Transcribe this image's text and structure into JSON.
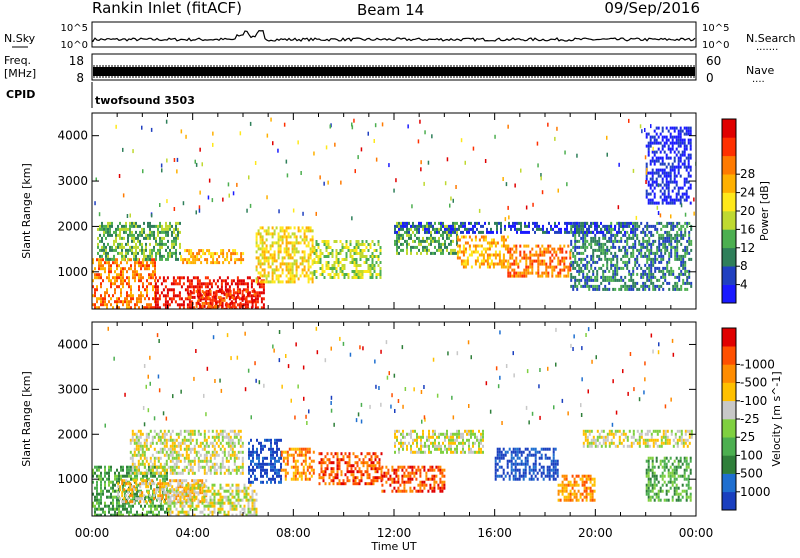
{
  "header": {
    "title": "Rankin Inlet (fitACF)",
    "beam": "Beam 14",
    "date": "09/Sep/2016"
  },
  "panels": {
    "nsky": {
      "left_label": "N.Sky",
      "right_label": "N.Search",
      "left_ticks": [
        "10^5",
        "10^0"
      ],
      "right_ticks": [
        "10^5",
        "10^0"
      ],
      "right_marker": "......."
    },
    "freq": {
      "left_label": "Freq.",
      "left_unit": "[MHz]",
      "left_ticks": [
        "18",
        "8"
      ],
      "right_label": "Nave",
      "right_ticks": [
        "60",
        "0"
      ],
      "right_marker": "...."
    },
    "cpid": {
      "label": "CPID",
      "value": "twofsound 3503"
    }
  },
  "chart_data": [
    {
      "type": "heatmap",
      "ylabel": "Slant Range [km]",
      "y_ticks": [
        1000,
        2000,
        3000,
        4000
      ],
      "ylim": [
        180,
        4500
      ],
      "xlim": [
        0,
        24
      ],
      "colorbar": {
        "label": "Power [dB]",
        "ticks": [
          "4",
          "8",
          "12",
          "16",
          "20",
          "24",
          "28"
        ],
        "colors": [
          "#1a1aff",
          "#2040c0",
          "#2f7f5a",
          "#4caf50",
          "#bfd930",
          "#ffe81a",
          "#ffb000",
          "#ff7a00",
          "#ff3000",
          "#e00000"
        ]
      },
      "regions": [
        {
          "x": [
            0.0,
            2.5
          ],
          "y": [
            180,
            1300
          ],
          "level": 7
        },
        {
          "x": [
            2.5,
            6.8
          ],
          "y": [
            180,
            900
          ],
          "level": 9
        },
        {
          "x": [
            3.8,
            6.5
          ],
          "y": [
            180,
            600
          ],
          "level": 8
        },
        {
          "x": [
            0.2,
            3.5
          ],
          "y": [
            1300,
            2100
          ],
          "level": 3
        },
        {
          "x": [
            3.5,
            6.0
          ],
          "y": [
            1200,
            1500
          ],
          "level": 6
        },
        {
          "x": [
            6.5,
            8.8
          ],
          "y": [
            800,
            2000
          ],
          "level": 5
        },
        {
          "x": [
            8.8,
            11.5
          ],
          "y": [
            900,
            1700
          ],
          "level": 4
        },
        {
          "x": [
            12.0,
            14.5
          ],
          "y": [
            1400,
            2100
          ],
          "level": 3
        },
        {
          "x": [
            14.5,
            16.5
          ],
          "y": [
            1100,
            1800
          ],
          "level": 6
        },
        {
          "x": [
            16.5,
            19.0
          ],
          "y": [
            900,
            1600
          ],
          "level": 7
        },
        {
          "x": [
            19.0,
            23.8
          ],
          "y": [
            600,
            2100
          ],
          "level": 2
        },
        {
          "x": [
            12.0,
            21.5
          ],
          "y": [
            1900,
            2100
          ],
          "level": 1
        },
        {
          "x": [
            22.0,
            23.8
          ],
          "y": [
            2500,
            4200
          ],
          "level": 0
        }
      ]
    },
    {
      "type": "heatmap",
      "ylabel": "Slant Range [km]",
      "xlabel": "Time UT",
      "x_ticks": [
        "00:00",
        "04:00",
        "08:00",
        "12:00",
        "16:00",
        "20:00",
        "00:00"
      ],
      "y_ticks": [
        1000,
        2000,
        3000,
        4000
      ],
      "ylim": [
        180,
        4500
      ],
      "xlim": [
        0,
        24
      ],
      "colorbar": {
        "label": "Velocity [m s^-1]",
        "ticks": [
          "1000",
          "500",
          "100",
          "25",
          "-25",
          "-100",
          "-500",
          "-1000"
        ],
        "colors": [
          "#1a3fbf",
          "#1f6fd0",
          "#2f7f3a",
          "#4caf50",
          "#7fd040",
          "#c8c8c8",
          "#ffc000",
          "#ff8c00",
          "#ff5000",
          "#e00000"
        ]
      },
      "regions": [
        {
          "x": [
            0.0,
            3.0
          ],
          "y": [
            180,
            1300
          ],
          "level": 3
        },
        {
          "x": [
            1.0,
            4.5
          ],
          "y": [
            500,
            1000
          ],
          "level": 6
        },
        {
          "x": [
            3.0,
            6.5
          ],
          "y": [
            180,
            900
          ],
          "level": 5
        },
        {
          "x": [
            1.5,
            6.0
          ],
          "y": [
            1100,
            2100
          ],
          "level": 5
        },
        {
          "x": [
            6.2,
            7.5
          ],
          "y": [
            900,
            1900
          ],
          "level": 0
        },
        {
          "x": [
            7.5,
            8.8
          ],
          "y": [
            1000,
            1700
          ],
          "level": 7
        },
        {
          "x": [
            9.0,
            11.5
          ],
          "y": [
            900,
            1600
          ],
          "level": 8
        },
        {
          "x": [
            11.5,
            14.0
          ],
          "y": [
            700,
            1300
          ],
          "level": 8
        },
        {
          "x": [
            12.0,
            15.5
          ],
          "y": [
            1600,
            2100
          ],
          "level": 5
        },
        {
          "x": [
            16.0,
            18.5
          ],
          "y": [
            1000,
            1700
          ],
          "level": 0
        },
        {
          "x": [
            18.5,
            20.0
          ],
          "y": [
            500,
            1100
          ],
          "level": 7
        },
        {
          "x": [
            19.5,
            23.8
          ],
          "y": [
            1700,
            2100
          ],
          "level": 5
        },
        {
          "x": [
            22.0,
            23.8
          ],
          "y": [
            500,
            1500
          ],
          "level": 3
        }
      ]
    }
  ]
}
